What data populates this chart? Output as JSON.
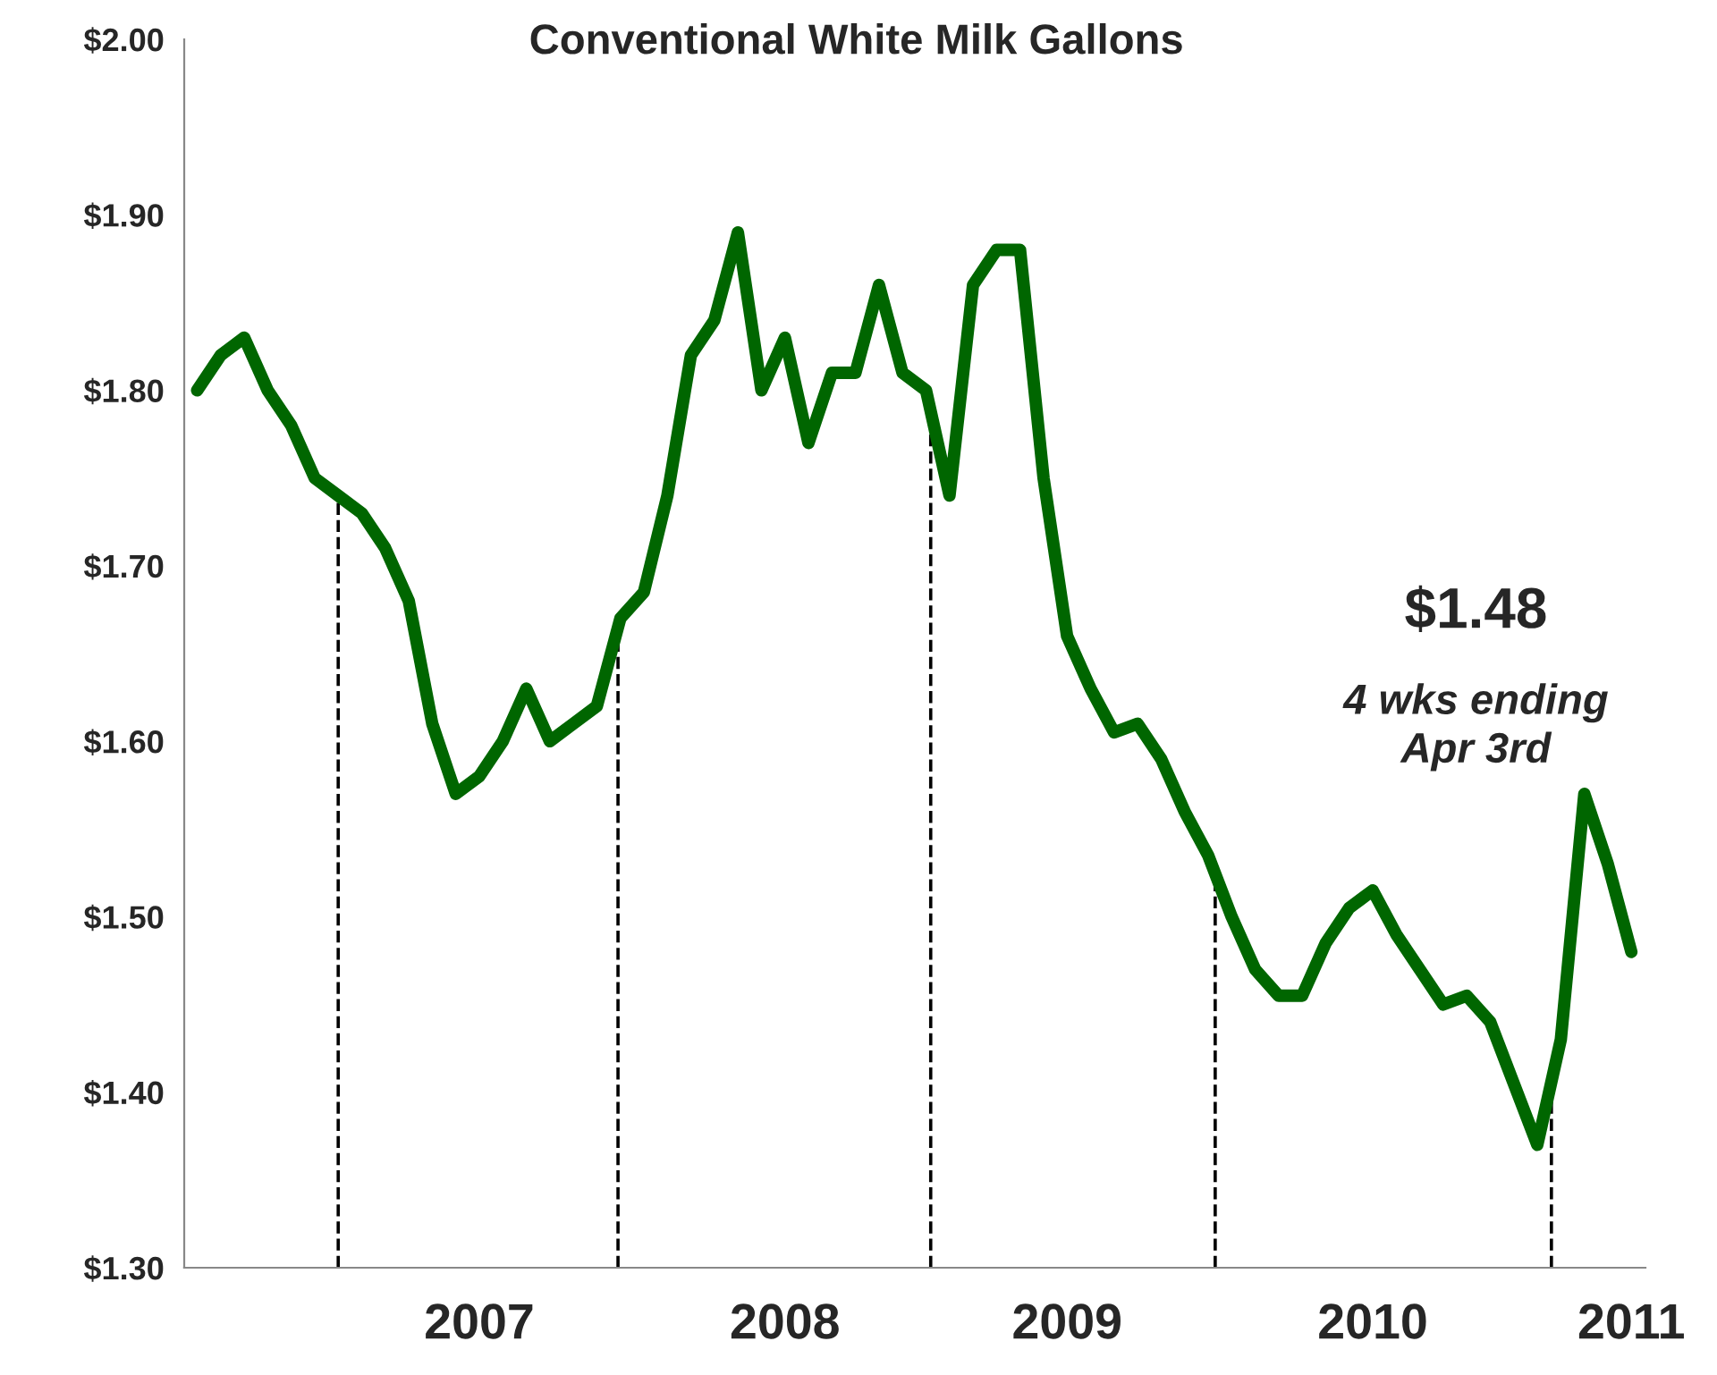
{
  "chart_data": {
    "type": "line",
    "title": "Conventional White Milk Gallons",
    "categories": [
      null,
      null,
      null,
      null,
      null,
      null,
      null,
      null,
      null,
      null,
      null,
      null,
      "2007",
      null,
      null,
      null,
      null,
      null,
      null,
      null,
      null,
      null,
      null,
      null,
      null,
      "2008",
      null,
      null,
      null,
      null,
      null,
      null,
      null,
      null,
      null,
      null,
      null,
      "2009",
      null,
      null,
      null,
      null,
      null,
      null,
      null,
      null,
      null,
      null,
      null,
      null,
      "2010",
      null,
      null,
      null,
      null,
      null,
      null,
      null,
      null,
      null,
      null,
      "2011"
    ],
    "series": [
      {
        "color": "#006600",
        "values": [
          1.8,
          1.82,
          1.83,
          1.8,
          1.78,
          1.75,
          1.74,
          1.73,
          1.71,
          1.68,
          1.61,
          1.57,
          1.58,
          1.6,
          1.63,
          1.6,
          1.61,
          1.62,
          1.67,
          1.685,
          1.74,
          1.82,
          1.84,
          1.89,
          1.8,
          1.83,
          1.77,
          1.81,
          1.81,
          1.86,
          1.81,
          1.8,
          1.74,
          1.86,
          1.88,
          1.88,
          1.75,
          1.66,
          1.63,
          1.605,
          1.61,
          1.59,
          1.56,
          1.535,
          1.5,
          1.47,
          1.455,
          1.455,
          1.485,
          1.505,
          1.515,
          1.49,
          1.47,
          1.45,
          1.455,
          1.44,
          1.405,
          1.37,
          1.43,
          1.57,
          1.53,
          1.48
        ]
      }
    ],
    "ylim": [
      1.3,
      2.0
    ],
    "yticks": [
      {
        "value": 1.3,
        "label": "$1.30"
      },
      {
        "value": 1.4,
        "label": "$1.40"
      },
      {
        "value": 1.5,
        "label": "$1.50"
      },
      {
        "value": 1.6,
        "label": "$1.60"
      },
      {
        "value": 1.7,
        "label": "$1.70"
      },
      {
        "value": 1.8,
        "label": "$1.80"
      },
      {
        "value": 1.9,
        "label": "$1.90"
      },
      {
        "value": 2.0,
        "label": "$2.00"
      }
    ],
    "annotations": [
      "$1.48",
      "4 wks ending\nApr 3rd"
    ],
    "grid": false,
    "legend": false,
    "marker": "none",
    "line_style": "solid"
  }
}
